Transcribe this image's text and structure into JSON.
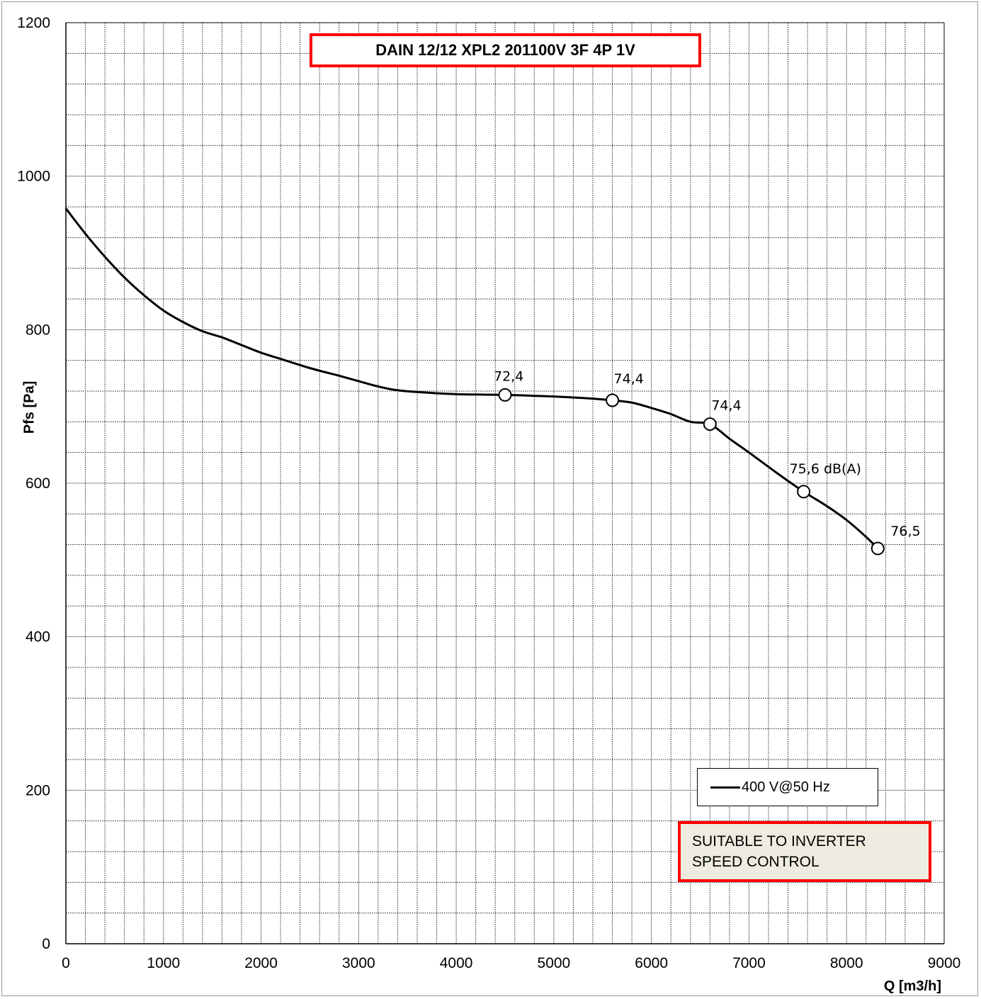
{
  "chart_data": {
    "type": "line",
    "title": "DAIN 12/12 XPL2 201100V 3F 4P 1V",
    "xlabel": "Q [m3/h]",
    "ylabel": "Pfs [Pa]",
    "xlim": [
      0,
      9000
    ],
    "ylim": [
      0,
      1200
    ],
    "x_ticks": [
      "0",
      "1000",
      "2000",
      "3000",
      "4000",
      "5000",
      "6000",
      "7000",
      "8000",
      "9000"
    ],
    "y_ticks": [
      "0",
      "200",
      "400",
      "600",
      "800",
      "1000",
      "1200"
    ],
    "grid": true,
    "legend_position": "bottom-right",
    "series": [
      {
        "name": "400 V@50 Hz",
        "color": "#000000",
        "x": [
          0,
          200,
          400,
          600,
          800,
          1000,
          1200,
          1400,
          1600,
          1800,
          2000,
          2200,
          2500,
          2800,
          3000,
          3200,
          3400,
          3700,
          4000,
          4500,
          5000,
          5300,
          5600,
          5800,
          6000,
          6200,
          6400,
          6600,
          6800,
          7000,
          7300,
          7560,
          7800,
          8000,
          8200,
          8320
        ],
        "y": [
          958,
          925,
          895,
          868,
          845,
          825,
          810,
          798,
          790,
          780,
          770,
          762,
          750,
          740,
          733,
          726,
          721,
          718,
          716,
          715,
          713,
          711,
          708,
          705,
          698,
          690,
          680,
          677,
          658,
          640,
          612,
          589,
          570,
          552,
          530,
          515
        ]
      }
    ],
    "markers": [
      {
        "x": 4500,
        "y": 715,
        "label": "72,4"
      },
      {
        "x": 5600,
        "y": 708,
        "label": "74,4"
      },
      {
        "x": 6600,
        "y": 677,
        "label": "74,4"
      },
      {
        "x": 7560,
        "y": 589,
        "label": "75,6 dB(A)"
      },
      {
        "x": 8320,
        "y": 515,
        "label": "76,5"
      }
    ]
  },
  "annotations": {
    "note_line1": "SUITABLE TO INVERTER",
    "note_line2": "SPEED CONTROL",
    "note_bg": "#eeece1",
    "accent_border": "#ff0000"
  }
}
